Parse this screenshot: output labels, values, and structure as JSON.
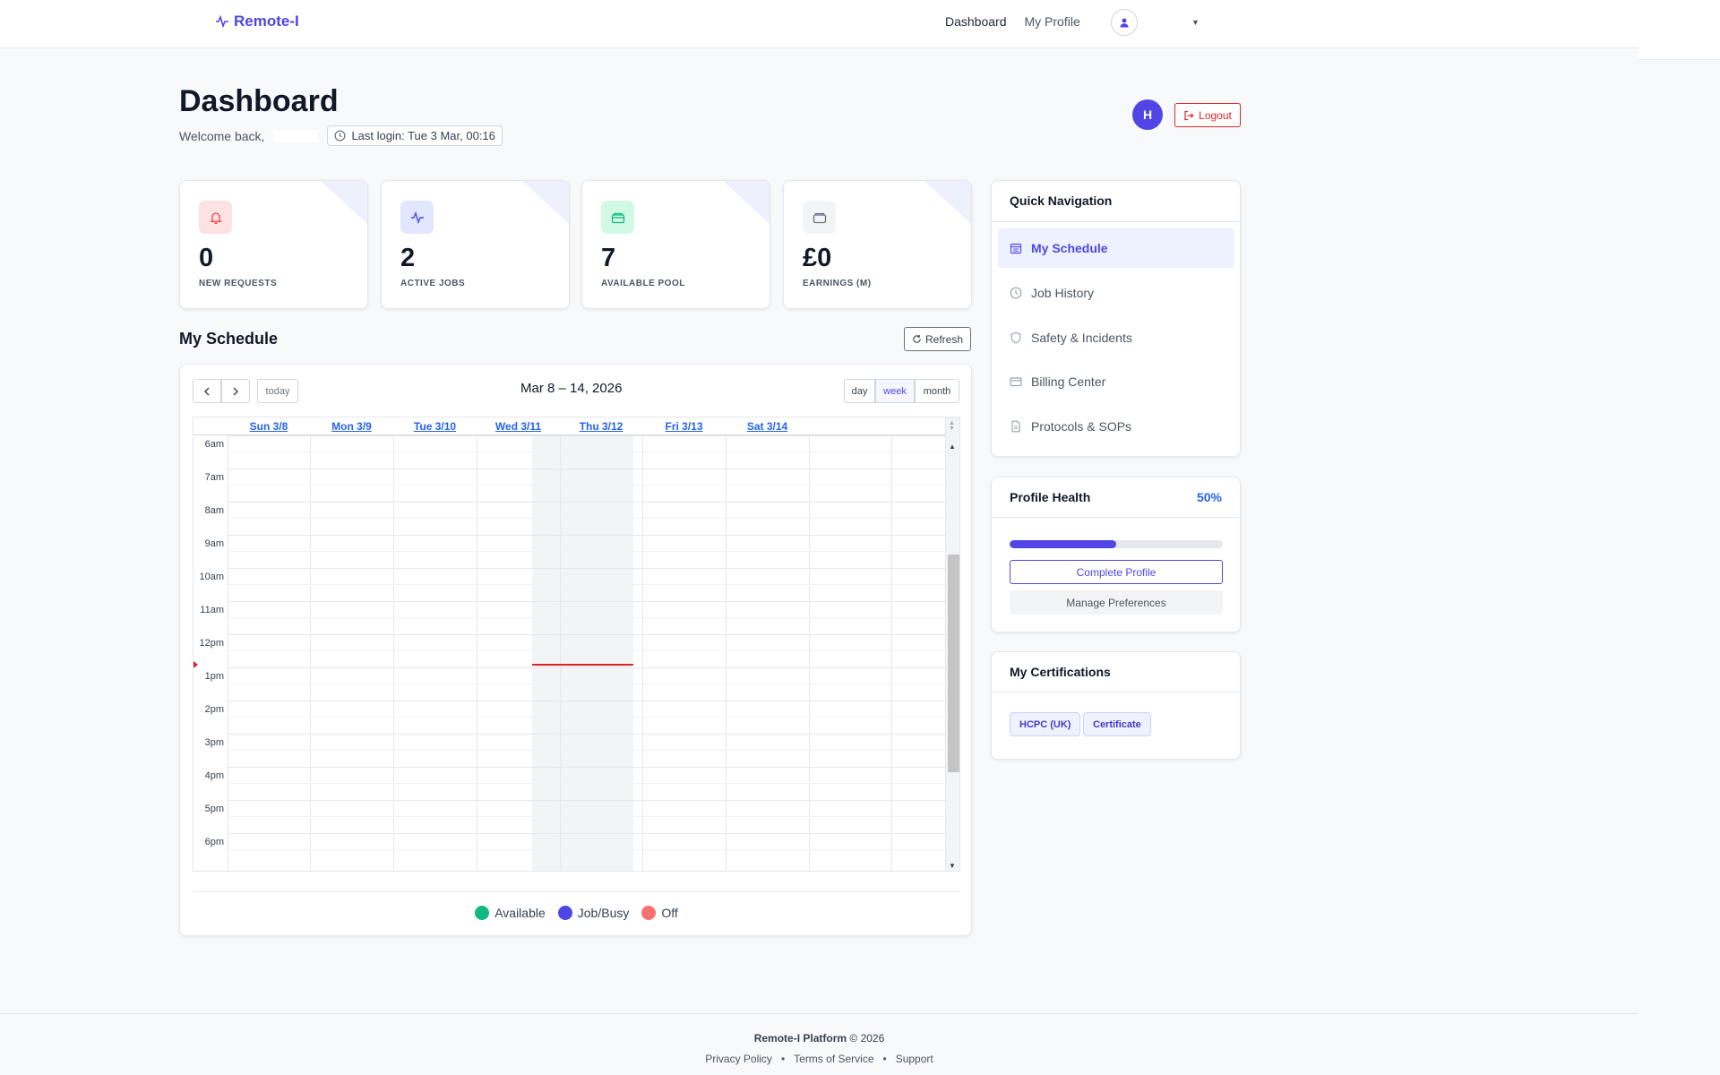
{
  "navbar": {
    "brand": "Remote-I",
    "links": [
      "Dashboard",
      "My Profile"
    ]
  },
  "header": {
    "title": "Dashboard",
    "welcome": "Welcome back,",
    "last_login": "Last login: Tue 3 Mar, 00:16",
    "avatar_initial": "H",
    "logout_label": "Logout"
  },
  "stats": [
    {
      "value": "0",
      "label": "NEW REQUESTS",
      "icon": "bell-icon",
      "color": "#ef4444"
    },
    {
      "value": "2",
      "label": "ACTIVE JOBS",
      "icon": "activity-icon",
      "color": "#4f46e5"
    },
    {
      "value": "7",
      "label": "AVAILABLE POOL",
      "icon": "wallet-icon",
      "color": "#10b981"
    },
    {
      "value": "£0",
      "label": "EARNINGS (M)",
      "icon": "wallet-icon",
      "color": "#6b7280"
    }
  ],
  "schedule": {
    "title": "My Schedule",
    "refresh_label": "Refresh",
    "today_label": "today",
    "range": "Mar 8 – 14, 2026",
    "views": [
      "day",
      "week",
      "month"
    ],
    "active_view": "week",
    "days": [
      "Sun 3/8",
      "Mon 3/9",
      "Tue 3/10",
      "Wed 3/11",
      "Thu 3/12",
      "Fri 3/13",
      "Sat 3/14"
    ],
    "hours": [
      "6am",
      "7am",
      "8am",
      "9am",
      "10am",
      "11am",
      "12pm",
      "1pm",
      "2pm",
      "3pm",
      "4pm",
      "5pm",
      "6pm"
    ],
    "legend": [
      {
        "label": "Available",
        "color": "#10b981"
      },
      {
        "label": "Job/Busy",
        "color": "#4f46e5"
      },
      {
        "label": "Off",
        "color": "#f87171"
      }
    ]
  },
  "quick_nav": {
    "title": "Quick Navigation",
    "items": [
      {
        "label": "My Schedule",
        "icon": "calendar-icon",
        "active": true
      },
      {
        "label": "Job History",
        "icon": "clock-icon",
        "active": false
      },
      {
        "label": "Safety & Incidents",
        "icon": "shield-icon",
        "active": false
      },
      {
        "label": "Billing Center",
        "icon": "credit-card-icon",
        "active": false
      },
      {
        "label": "Protocols & SOPs",
        "icon": "file-icon",
        "active": false
      }
    ]
  },
  "profile_health": {
    "title": "Profile Health",
    "percent_label": "50%",
    "percent": 50,
    "complete_label": "Complete Profile",
    "preferences_label": "Manage Preferences"
  },
  "certifications": {
    "title": "My Certifications",
    "items": [
      "HCPC (UK)",
      "Certificate"
    ]
  },
  "footer": {
    "platform": "Remote-I Platform",
    "copyright": "© 2026",
    "links": [
      "Privacy Policy",
      "Terms of Service",
      "Support"
    ],
    "separator": "•"
  }
}
